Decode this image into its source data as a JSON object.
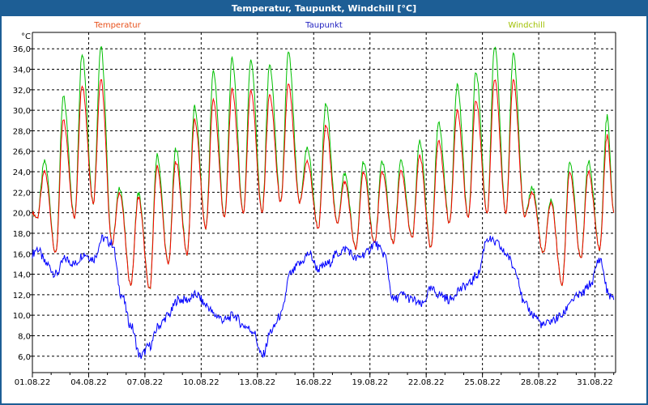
{
  "window": {
    "title": "Temperatur, Taupunkt, Windchill [°C]"
  },
  "chart_data": {
    "type": "line",
    "title": "Temperatur, Taupunkt, Windchill [°C]",
    "ylabel": "°C",
    "ylim": [
      4.4,
      37.6
    ],
    "xlim_days": [
      0,
      31.1
    ],
    "grid": true,
    "legend": [
      "Temperatur",
      "Taupunkt",
      "Windchill"
    ],
    "colors": {
      "Temperatur": "#ff0000",
      "Taupunkt": "#0000ff",
      "Windchill": "#00c000"
    },
    "legend_colors": {
      "Temperatur": "#e8501a",
      "Taupunkt": "#2020c0",
      "Windchill": "#a0c000"
    },
    "y_ticks": [
      "6,0",
      "8,0",
      "10,0",
      "12,0",
      "14,0",
      "16,0",
      "18,0",
      "20,0",
      "22,0",
      "24,0",
      "26,0",
      "28,0",
      "30,0",
      "32,0",
      "34,0",
      "36,0"
    ],
    "y_tick_values": [
      6,
      8,
      10,
      12,
      14,
      16,
      18,
      20,
      22,
      24,
      26,
      28,
      30,
      32,
      34,
      36
    ],
    "x_ticks": [
      "01.08.22",
      "04.08.22",
      "07.08.22",
      "10.08.22",
      "13.08.22",
      "16.08.22",
      "19.08.22",
      "22.08.22",
      "25.08.22",
      "28.08.22",
      "31.08.22"
    ],
    "x_tick_days": [
      0,
      3,
      6,
      9,
      12,
      15,
      18,
      21,
      24,
      27,
      30
    ],
    "temperature_daily_min": [
      19.5,
      16,
      19.5,
      21,
      17,
      13,
      12.5,
      15,
      16,
      18.5,
      19.5,
      20,
      20,
      21,
      21,
      18.5,
      19,
      16.5,
      17,
      17,
      17.5,
      16.5,
      19,
      19.5,
      20,
      20,
      19.5,
      16,
      13,
      15.5,
      16.5
    ],
    "temperature_daily_max": [
      24,
      29,
      32.5,
      33,
      22,
      21.5,
      24.5,
      25,
      29,
      31,
      32,
      32,
      31.5,
      32.5,
      25,
      28.5,
      23,
      24,
      24,
      24,
      25.5,
      27,
      30,
      31,
      33,
      33,
      22,
      21,
      24,
      24,
      27.5
    ],
    "temperature_end": 20,
    "windchill_daily_max": [
      25,
      31.3,
      35.6,
      36.2,
      22.5,
      21.9,
      25.6,
      26.3,
      30.3,
      33.8,
      35,
      35,
      34.4,
      35.6,
      26.3,
      30.6,
      23.8,
      25,
      25,
      25,
      26.9,
      28.8,
      32.5,
      33.8,
      36.2,
      35.6,
      22.5,
      21.3,
      25,
      25,
      29.4
    ],
    "dewpoint_half_daily": [
      16.5,
      15,
      14,
      15.5,
      15,
      16,
      15.5,
      17.5,
      17,
      12,
      9,
      6,
      7,
      9,
      10,
      11.5,
      11.5,
      12,
      11,
      10,
      9.5,
      10,
      9,
      8.5,
      6,
      8.5,
      10,
      14,
      15,
      16,
      14.5,
      15,
      16,
      16.5,
      15.5,
      16,
      17,
      16,
      11.5,
      12,
      11.5,
      11,
      12.5,
      12,
      11.5,
      12.5,
      13,
      14,
      17.5,
      17,
      16,
      14.5,
      11,
      10,
      9,
      9.5,
      10,
      11.5,
      12,
      13,
      15.5,
      12
    ],
    "dewpoint_end": 11.5
  }
}
